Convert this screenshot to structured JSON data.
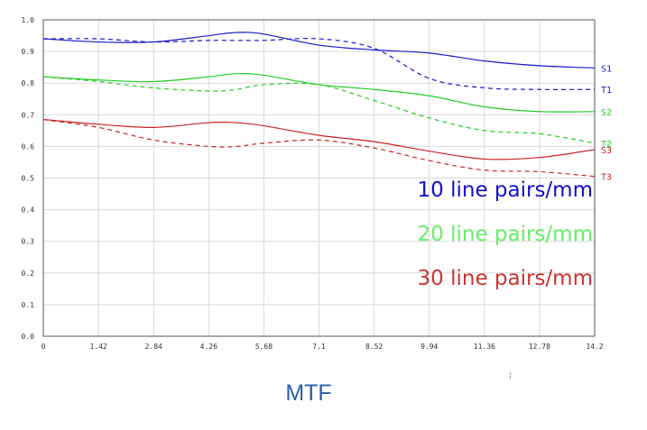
{
  "chart_data": {
    "type": "line",
    "title": "MTF",
    "xlabel": "",
    "ylabel": "",
    "xlim": [
      0,
      14.2
    ],
    "ylim": [
      0,
      1.0
    ],
    "xticks": [
      0,
      1.42,
      2.84,
      4.26,
      5.68,
      7.1,
      8.52,
      9.94,
      11.36,
      12.78,
      14.2
    ],
    "xtick_labels": [
      "0",
      "1.42",
      "2.84",
      "4.26",
      "5.68",
      "7.1",
      "8.52",
      "9.94",
      "11.36",
      "12.78",
      "14.2"
    ],
    "yticks": [
      0,
      0.1,
      0.2,
      0.3,
      0.4,
      0.5,
      0.6,
      0.7,
      0.8,
      0.9,
      1.0
    ],
    "ytick_labels": [
      "0.0",
      "0.1",
      "0.2",
      "0.3",
      "0.4",
      "0.5",
      "0.6",
      "0.7",
      "0.8",
      "0.9",
      "1.0"
    ],
    "grid": true,
    "x": [
      0,
      1.42,
      2.84,
      4.26,
      4.97,
      5.68,
      7.1,
      8.52,
      9.94,
      11.36,
      12.78,
      14.2
    ],
    "series": [
      {
        "name": "S1",
        "color": "#1a1acc",
        "style": "solid",
        "values": [
          0.94,
          0.93,
          0.93,
          0.95,
          0.96,
          0.955,
          0.92,
          0.905,
          0.895,
          0.87,
          0.855,
          0.848
        ]
      },
      {
        "name": "T1",
        "color": "#1a1acc",
        "style": "dashed",
        "values": [
          0.94,
          0.94,
          0.93,
          0.935,
          0.935,
          0.935,
          0.94,
          0.91,
          0.815,
          0.785,
          0.78,
          0.78
        ]
      },
      {
        "name": "S2",
        "color": "#22cc22",
        "style": "solid",
        "values": [
          0.82,
          0.81,
          0.805,
          0.82,
          0.83,
          0.825,
          0.795,
          0.78,
          0.76,
          0.725,
          0.71,
          0.71
        ]
      },
      {
        "name": "T2",
        "color": "#22cc22",
        "style": "dashed",
        "values": [
          0.82,
          0.805,
          0.785,
          0.775,
          0.78,
          0.795,
          0.795,
          0.745,
          0.69,
          0.65,
          0.64,
          0.61
        ]
      },
      {
        "name": "S3",
        "color": "#cc2222",
        "style": "solid",
        "values": [
          0.685,
          0.67,
          0.66,
          0.675,
          0.675,
          0.665,
          0.635,
          0.615,
          0.585,
          0.56,
          0.565,
          0.59
        ]
      },
      {
        "name": "T3",
        "color": "#cc2222",
        "style": "dashed",
        "values": [
          0.685,
          0.66,
          0.62,
          0.6,
          0.6,
          0.61,
          0.62,
          0.595,
          0.555,
          0.525,
          0.52,
          0.505
        ]
      }
    ],
    "legend": {
      "placement": "bottom-right",
      "entries": [
        {
          "label": "10 line pairs/mm",
          "color": "#1010cc"
        },
        {
          "label": "20 line pairs/mm",
          "color": "#66ee66"
        },
        {
          "label": "30 line pairs/mm",
          "color": "#cc3333"
        }
      ]
    }
  },
  "title_color": "#2b5cb0",
  "stray_mark": "¦"
}
